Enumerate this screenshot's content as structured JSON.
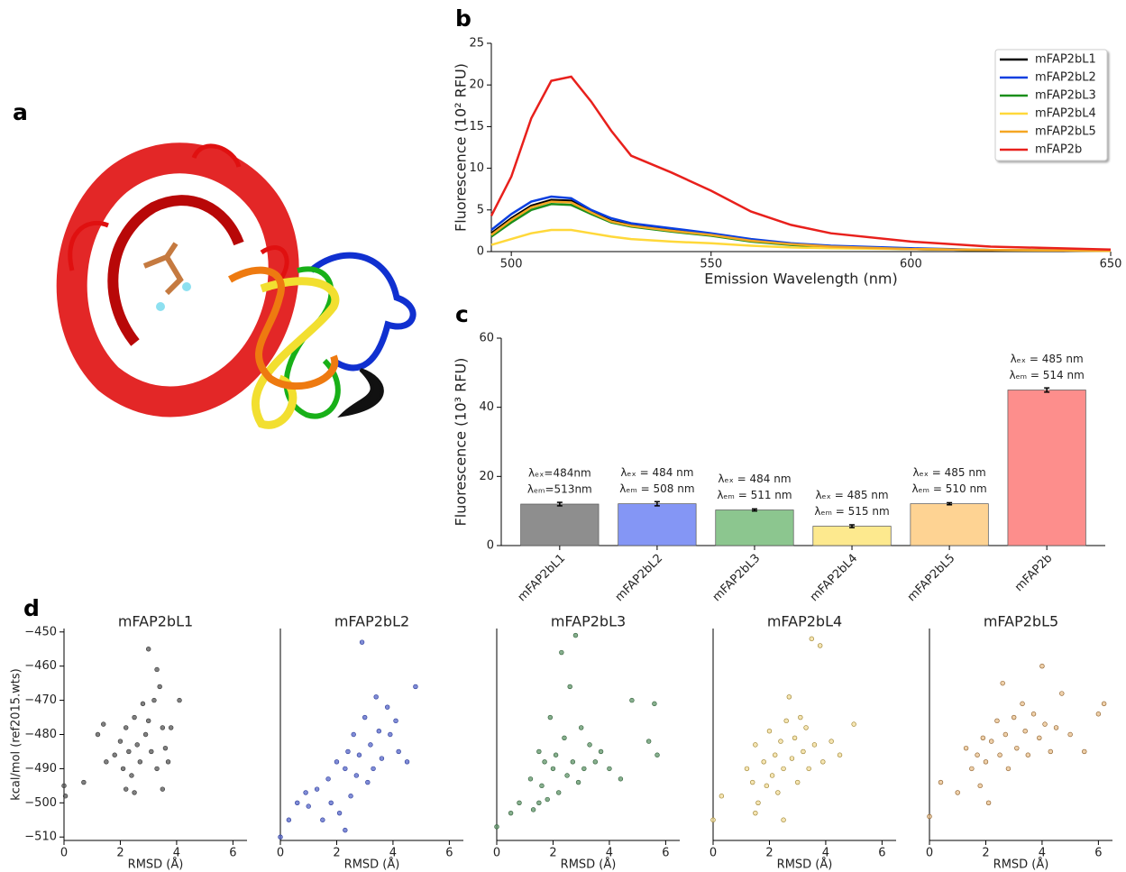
{
  "panel_labels": [
    "a",
    "b",
    "c",
    "d"
  ],
  "chart_data": [
    {
      "type": "line",
      "xlabel": "Emission Wavelength (nm)",
      "ylabel": "Fluorescence (10² RFU)",
      "x": [
        495,
        500,
        505,
        510,
        515,
        520,
        525,
        530,
        540,
        550,
        560,
        570,
        580,
        600,
        620,
        650
      ],
      "xlim": [
        495,
        650
      ],
      "xticks": [
        500,
        550,
        600,
        650
      ],
      "ylim": [
        0,
        25
      ],
      "yticks": [
        0,
        5,
        10,
        15,
        20,
        25
      ],
      "legend": "upper right",
      "series": [
        {
          "name": "mFAP2bL1",
          "color": "#000000",
          "values": [
            2.2,
            4.0,
            5.5,
            6.2,
            6.1,
            4.8,
            3.7,
            3.2,
            2.6,
            2.1,
            1.4,
            0.9,
            0.6,
            0.3,
            0.2,
            0.1
          ]
        },
        {
          "name": "mFAP2bL2",
          "color": "#0a3fe0",
          "values": [
            2.6,
            4.5,
            6.0,
            6.6,
            6.4,
            5.0,
            4.0,
            3.4,
            2.8,
            2.2,
            1.5,
            1.0,
            0.7,
            0.4,
            0.2,
            0.1
          ]
        },
        {
          "name": "mFAP2bL3",
          "color": "#1a8f1a",
          "values": [
            1.8,
            3.5,
            5.0,
            5.7,
            5.6,
            4.5,
            3.5,
            3.0,
            2.4,
            1.9,
            1.2,
            0.8,
            0.5,
            0.3,
            0.2,
            0.1
          ]
        },
        {
          "name": "mFAP2bL4",
          "color": "#ffd83a",
          "values": [
            0.8,
            1.5,
            2.2,
            2.6,
            2.6,
            2.2,
            1.8,
            1.5,
            1.2,
            1.0,
            0.7,
            0.5,
            0.4,
            0.3,
            0.2,
            0.1
          ]
        },
        {
          "name": "mFAP2bL5",
          "color": "#f5a623",
          "values": [
            2.0,
            3.8,
            5.3,
            6.0,
            5.9,
            4.7,
            3.6,
            3.1,
            2.5,
            2.0,
            1.3,
            0.9,
            0.6,
            0.3,
            0.2,
            0.1
          ]
        },
        {
          "name": "mFAP2b",
          "color": "#e8201c",
          "values": [
            4.3,
            9.0,
            16.0,
            20.5,
            21.0,
            18.0,
            14.5,
            11.5,
            9.5,
            7.3,
            4.8,
            3.2,
            2.2,
            1.2,
            0.6,
            0.25
          ]
        }
      ]
    },
    {
      "type": "bar",
      "ylabel": "Fluorescence (10³ RFU)",
      "categories": [
        "mFAP2bL1",
        "mFAP2bL2",
        "mFAP2bL3",
        "mFAP2bL4",
        "mFAP2bL5",
        "mFAP2b"
      ],
      "values": [
        12.0,
        12.1,
        10.3,
        5.6,
        12.1,
        45.0
      ],
      "errors": [
        0.5,
        0.6,
        0.3,
        0.4,
        0.3,
        0.6
      ],
      "colors": [
        "#8e8e8e",
        "#8496f5",
        "#8cc68f",
        "#fde98e",
        "#fed393",
        "#fd8e8c"
      ],
      "annotations": [
        [
          "λₑₓ=484nm",
          "λₑₘ=513nm"
        ],
        [
          "λₑₓ = 484 nm",
          "λₑₘ = 508 nm"
        ],
        [
          "λₑₓ = 484 nm",
          "λₑₘ = 511 nm"
        ],
        [
          "λₑₓ = 485 nm",
          "λₑₘ = 515 nm"
        ],
        [
          "λₑₓ = 485 nm",
          "λₑₘ = 510 nm"
        ],
        [
          "λₑₓ = 485 nm",
          "λₑₘ = 514 nm"
        ]
      ],
      "ylim": [
        0,
        60
      ],
      "yticks": [
        0,
        20,
        40,
        60
      ]
    },
    {
      "type": "scatter",
      "title": "mFAP2bL1",
      "xlabel": "RMSD (Å)",
      "ylabel": "kcal/mol (ref2015.wts)",
      "color": "#555555",
      "edgecolor": "#333333",
      "x": [
        0,
        0.05,
        0.7,
        1.2,
        1.4,
        1.5,
        1.8,
        2.0,
        2.1,
        2.2,
        2.3,
        2.4,
        2.5,
        2.6,
        2.7,
        2.8,
        2.9,
        3.0,
        3.0,
        3.1,
        3.2,
        3.3,
        3.4,
        3.5,
        3.6,
        3.7,
        3.8,
        4.1,
        3.3,
        2.2,
        2.5,
        3.5
      ],
      "y": [
        -495,
        -498,
        -494,
        -480,
        -477,
        -488,
        -486,
        -482,
        -490,
        -478,
        -485,
        -492,
        -475,
        -483,
        -488,
        -471,
        -480,
        -476,
        -455,
        -485,
        -470,
        -490,
        -466,
        -478,
        -484,
        -488,
        -478,
        -470,
        -461,
        -496,
        -497,
        -496
      ],
      "xlim": [
        0,
        6.5
      ],
      "xticks": [
        0,
        2,
        4,
        6
      ],
      "ylim": [
        -511,
        -449
      ],
      "yticks": [
        {
          "value": -510,
          "label": "−510"
        },
        {
          "value": -500,
          "label": "−500"
        },
        {
          "value": -490,
          "label": "−490"
        },
        {
          "value": -480,
          "label": "−480"
        },
        {
          "value": -470,
          "label": "−470"
        },
        {
          "value": -460,
          "label": "−460"
        },
        {
          "value": -450,
          "label": "−450"
        }
      ]
    },
    {
      "type": "scatter",
      "title": "mFAP2bL2",
      "xlabel": "RMSD (Å)",
      "color": "#5566c8",
      "edgecolor": "#2a3a9a",
      "x": [
        0,
        0.3,
        0.6,
        0.9,
        1.0,
        1.3,
        1.5,
        1.7,
        1.8,
        2.0,
        2.1,
        2.3,
        2.4,
        2.5,
        2.6,
        2.7,
        2.8,
        2.9,
        3.0,
        3.1,
        3.2,
        3.3,
        3.4,
        3.5,
        3.6,
        3.8,
        3.9,
        4.1,
        4.2,
        4.5,
        4.8,
        2.3
      ],
      "y": [
        -510,
        -505,
        -500,
        -497,
        -501,
        -496,
        -505,
        -493,
        -500,
        -488,
        -503,
        -490,
        -485,
        -498,
        -480,
        -492,
        -486,
        -453,
        -475,
        -494,
        -483,
        -490,
        -469,
        -479,
        -487,
        -472,
        -480,
        -476,
        -485,
        -488,
        -466,
        -508
      ],
      "xlim": [
        0,
        6.5
      ],
      "xticks": [
        0,
        2,
        4,
        6
      ],
      "ylim": [
        -511,
        -449
      ]
    },
    {
      "type": "scatter",
      "title": "mFAP2bL3",
      "xlabel": "RMSD (Å)",
      "color": "#5f9468",
      "edgecolor": "#2e5e36",
      "x": [
        0,
        0.5,
        0.8,
        1.2,
        1.3,
        1.5,
        1.6,
        1.7,
        1.8,
        1.9,
        2.0,
        2.1,
        2.2,
        2.3,
        2.4,
        2.5,
        2.6,
        2.7,
        2.8,
        2.9,
        3.0,
        3.1,
        3.3,
        3.5,
        3.7,
        4.0,
        4.4,
        4.8,
        5.4,
        5.6,
        5.7,
        1.5
      ],
      "y": [
        -507,
        -503,
        -500,
        -493,
        -502,
        -485,
        -495,
        -488,
        -499,
        -475,
        -490,
        -486,
        -497,
        -456,
        -481,
        -492,
        -466,
        -488,
        -451,
        -494,
        -478,
        -490,
        -483,
        -488,
        -485,
        -490,
        -493,
        -470,
        -482,
        -471,
        -486,
        -500
      ],
      "xlim": [
        0,
        6.5
      ],
      "xticks": [
        0,
        2,
        4,
        6
      ],
      "ylim": [
        -511,
        -449
      ]
    },
    {
      "type": "scatter",
      "title": "mFAP2bL4",
      "xlabel": "RMSD (Å)",
      "color": "#f1dc9a",
      "edgecolor": "#9a7f2a",
      "x": [
        0,
        0.3,
        1.2,
        1.4,
        1.5,
        1.6,
        1.8,
        1.9,
        2.0,
        2.1,
        2.2,
        2.3,
        2.4,
        2.5,
        2.6,
        2.7,
        2.8,
        2.9,
        3.0,
        3.1,
        3.2,
        3.3,
        3.4,
        3.5,
        3.6,
        3.8,
        3.9,
        4.2,
        4.5,
        5.0,
        1.5,
        2.5
      ],
      "y": [
        -505,
        -498,
        -490,
        -494,
        -483,
        -500,
        -488,
        -495,
        -479,
        -492,
        -486,
        -497,
        -482,
        -490,
        -476,
        -469,
        -487,
        -481,
        -494,
        -475,
        -485,
        -478,
        -490,
        -452,
        -483,
        -454,
        -488,
        -482,
        -486,
        -477,
        -503,
        -505
      ],
      "xlim": [
        0,
        6.5
      ],
      "xticks": [
        0,
        2,
        4,
        6
      ],
      "ylim": [
        -511,
        -449
      ]
    },
    {
      "type": "scatter",
      "title": "mFAP2bL5",
      "xlabel": "RMSD (Å)",
      "color": "#e8c08e",
      "edgecolor": "#8a5a24",
      "x": [
        0,
        0.4,
        1.0,
        1.3,
        1.5,
        1.7,
        1.8,
        1.9,
        2.0,
        2.1,
        2.2,
        2.4,
        2.5,
        2.6,
        2.7,
        2.8,
        3.0,
        3.1,
        3.3,
        3.4,
        3.5,
        3.7,
        3.9,
        4.0,
        4.1,
        4.3,
        4.5,
        4.7,
        5.0,
        5.5,
        6.0,
        6.2
      ],
      "y": [
        -504,
        -494,
        -497,
        -484,
        -490,
        -486,
        -495,
        -481,
        -488,
        -500,
        -482,
        -476,
        -486,
        -465,
        -480,
        -490,
        -475,
        -484,
        -471,
        -479,
        -486,
        -474,
        -481,
        -460,
        -477,
        -485,
        -478,
        -468,
        -480,
        -485,
        -474,
        -471
      ],
      "xlim": [
        0,
        6.5
      ],
      "xticks": [
        0,
        2,
        4,
        6
      ],
      "ylim": [
        -511,
        -449
      ]
    }
  ]
}
